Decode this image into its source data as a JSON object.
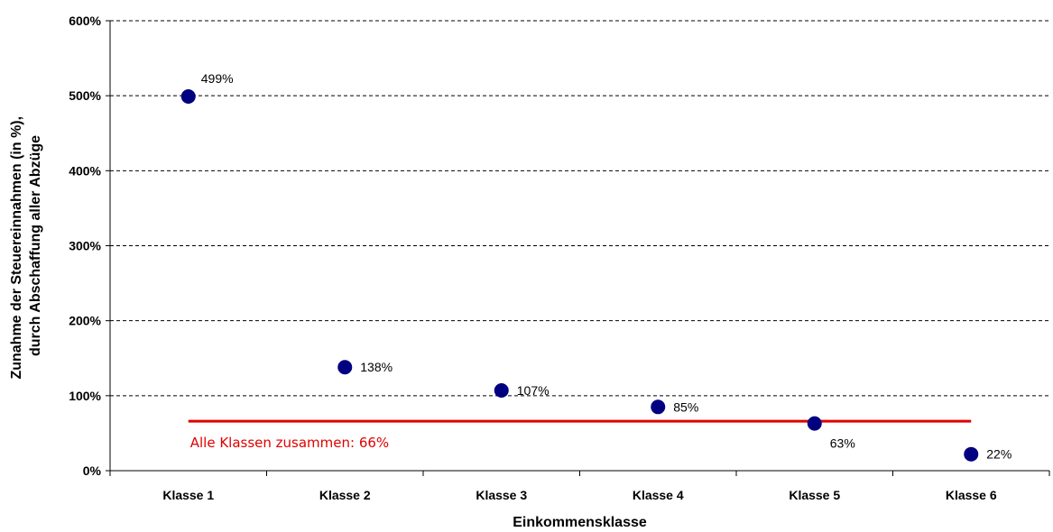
{
  "chart_data": {
    "type": "scatter",
    "categories": [
      "Klasse 1",
      "Klasse 2",
      "Klasse 3",
      "Klasse 4",
      "Klasse 5",
      "Klasse 6"
    ],
    "series": [
      {
        "values": [
          499,
          138,
          107,
          85,
          63,
          22
        ],
        "labels": [
          "499%",
          "138%",
          "107%",
          "85%",
          "63%",
          "22%"
        ],
        "color": "#000080"
      }
    ],
    "reference_line": {
      "value": 66,
      "label": "Alle Klassen zusammen: 66%",
      "color": "#e00000"
    },
    "xlabel": "Einkommensklasse",
    "ylabel": [
      "Zunahme der Steuereinnahmen (in %),",
      "durch Abschaffung aller Abzüge"
    ],
    "ylim": [
      0,
      600
    ],
    "y_ticks": [
      "0%",
      "100%",
      "200%",
      "300%",
      "400%",
      "500%",
      "600%"
    ],
    "grid": "horizontal dashed",
    "legend": "none"
  }
}
